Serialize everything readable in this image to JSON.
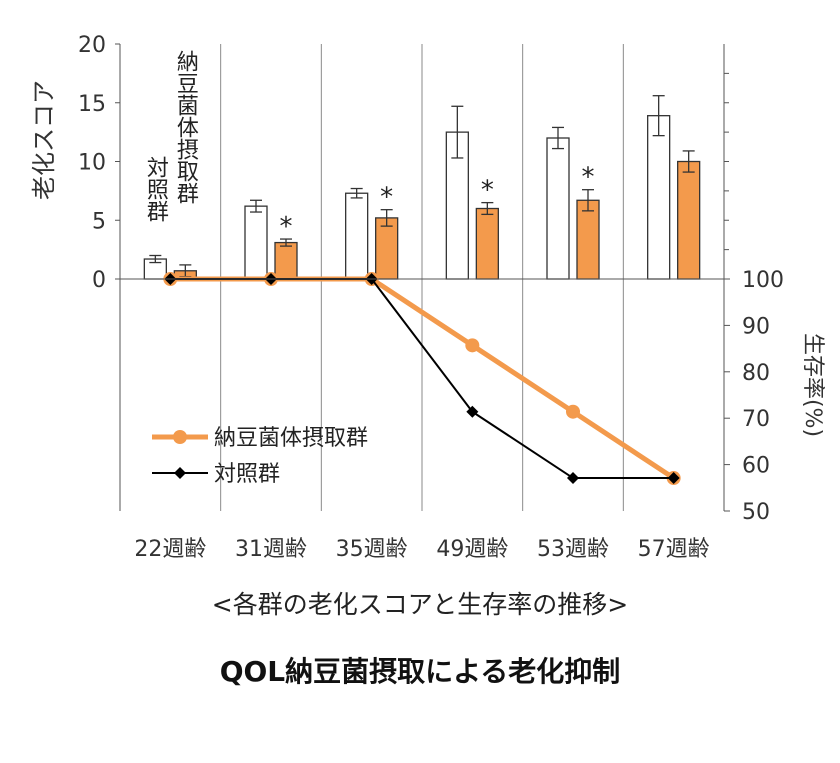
{
  "chart_data": {
    "type": "bar+line",
    "categories": [
      "22週齢",
      "31週齢",
      "35週齢",
      "49週齢",
      "53週齢",
      "57週齢"
    ],
    "bar_axis": {
      "label": "老化スコア",
      "range": [
        0,
        20
      ],
      "ticks": [
        0,
        5,
        10,
        15,
        20
      ]
    },
    "line_axis": {
      "label": "生存率(%)",
      "range": [
        50,
        100
      ],
      "ticks": [
        50,
        60,
        70,
        80,
        90,
        100
      ]
    },
    "bar_series": [
      {
        "name": "対照群",
        "color": "#ffffff",
        "values": [
          1.7,
          6.2,
          7.3,
          12.5,
          12.0,
          13.9
        ],
        "errors": [
          0.3,
          0.5,
          0.4,
          2.2,
          0.9,
          1.7
        ]
      },
      {
        "name": "納豆菌体摂取群",
        "color": "#f39a4c",
        "values": [
          0.7,
          3.1,
          5.2,
          6.0,
          6.7,
          10.0
        ],
        "errors": [
          0.5,
          0.3,
          0.7,
          0.5,
          0.9,
          0.9
        ]
      }
    ],
    "significance": [
      false,
      true,
      true,
      true,
      true,
      false
    ],
    "significance_mark": "*",
    "line_series": [
      {
        "name": "納豆菌体摂取群",
        "color": "#f39a4c",
        "marker": "circle",
        "values": [
          100,
          100,
          100,
          85.7,
          71.4,
          57.1
        ]
      },
      {
        "name": "対照群",
        "color": "#000000",
        "marker": "diamond",
        "values": [
          100,
          100,
          100,
          71.4,
          57.1,
          57.1
        ]
      }
    ],
    "bar_labels": [
      "対照群",
      "納豆菌体摂取群"
    ],
    "legend": [
      {
        "name": "納豆菌体摂取群",
        "color": "#f39a4c",
        "marker": "circle"
      },
      {
        "name": "対照群",
        "color": "#000000",
        "marker": "diamond"
      }
    ]
  },
  "captions": {
    "subtitle": "<各群の老化スコアと生存率の推移>",
    "title": "QOL納豆菌摂取による老化抑制"
  }
}
